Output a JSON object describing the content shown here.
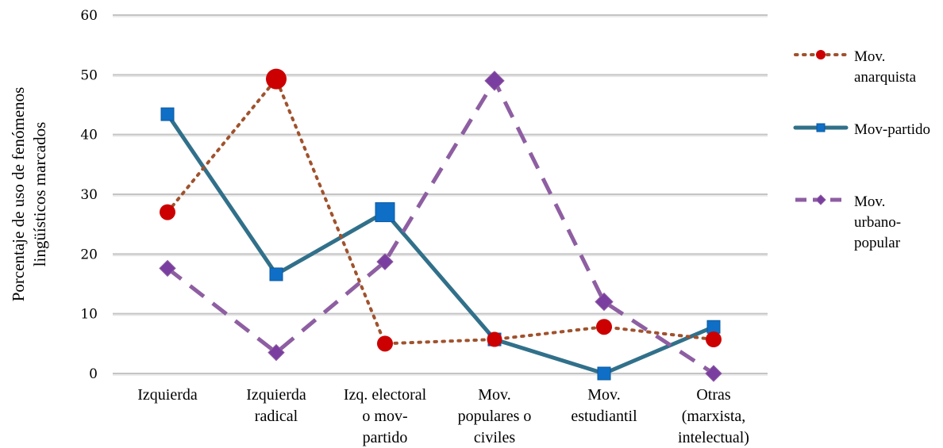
{
  "chart_data": {
    "type": "line",
    "title": "",
    "xlabel": "",
    "ylabel": [
      "Porcentaje de uso de fenómenos",
      "lingüísticos marcados"
    ],
    "ylim": [
      0,
      60
    ],
    "yticks": [
      "0",
      "10",
      "20",
      "30",
      "40",
      "50",
      "60"
    ],
    "grid": true,
    "legend_position": "right",
    "categories": [
      [
        "Izquierda"
      ],
      [
        "Izquierda",
        "radical"
      ],
      [
        "Izq. electoral",
        "o mov-",
        "partido"
      ],
      [
        "Mov.",
        "populares o",
        "civiles"
      ],
      [
        "Mov.",
        "estudiantil"
      ],
      [
        "Otras",
        "(marxista,",
        "intelectual)"
      ]
    ],
    "series": [
      {
        "name": [
          "Mov.",
          "anarquista"
        ],
        "values": [
          27,
          49.3,
          5,
          5.7,
          7.8,
          5.7
        ],
        "color": "#a0522d",
        "marker_color": "#cc0000",
        "line_style": "dotted",
        "marker": "circle"
      },
      {
        "name": [
          "Mov-partido"
        ],
        "values": [
          43.4,
          16.6,
          27,
          5.7,
          0,
          7.8
        ],
        "color": "#31708a",
        "marker_color": "#0f6fc6",
        "line_style": "solid",
        "marker": "square"
      },
      {
        "name": [
          "Mov.",
          "urbano-",
          "popular"
        ],
        "values": [
          17.6,
          3.5,
          18.7,
          49,
          12,
          0
        ],
        "color": "#8e5ea2",
        "marker_color": "#7a3ea0",
        "line_style": "dashed",
        "marker": "diamond"
      }
    ]
  }
}
